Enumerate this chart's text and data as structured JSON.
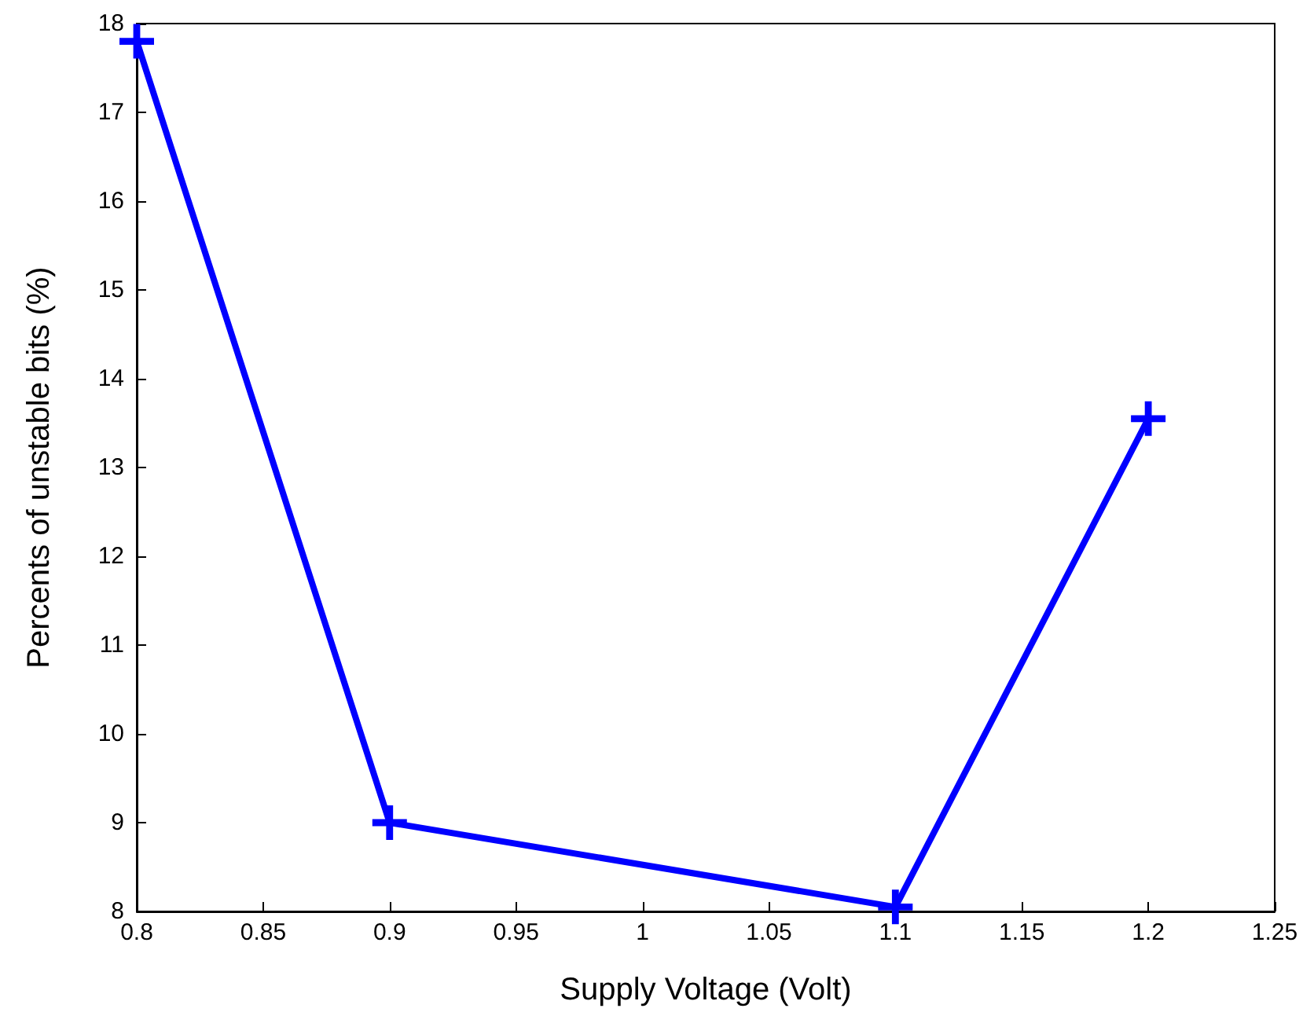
{
  "chart_data": {
    "type": "line",
    "xlabel": "Supply Voltage (Volt)",
    "ylabel": "Percents of unstable bits (%)",
    "x": [
      0.8,
      0.9,
      1.1,
      1.2
    ],
    "series": [
      {
        "color": "#0000ff",
        "values": [
          17.8,
          9.0,
          8.05,
          13.55
        ]
      }
    ],
    "xlim": [
      0.8,
      1.25
    ],
    "xticks": [
      0.8,
      0.85,
      0.9,
      0.95,
      1,
      1.05,
      1.1,
      1.15,
      1.2,
      1.25
    ],
    "ylim": [
      8,
      18
    ],
    "yticks": [
      8,
      9,
      10,
      11,
      12,
      13,
      14,
      15,
      16,
      17,
      18
    ],
    "grid": false,
    "marker": "cross",
    "line_style": "solid"
  }
}
